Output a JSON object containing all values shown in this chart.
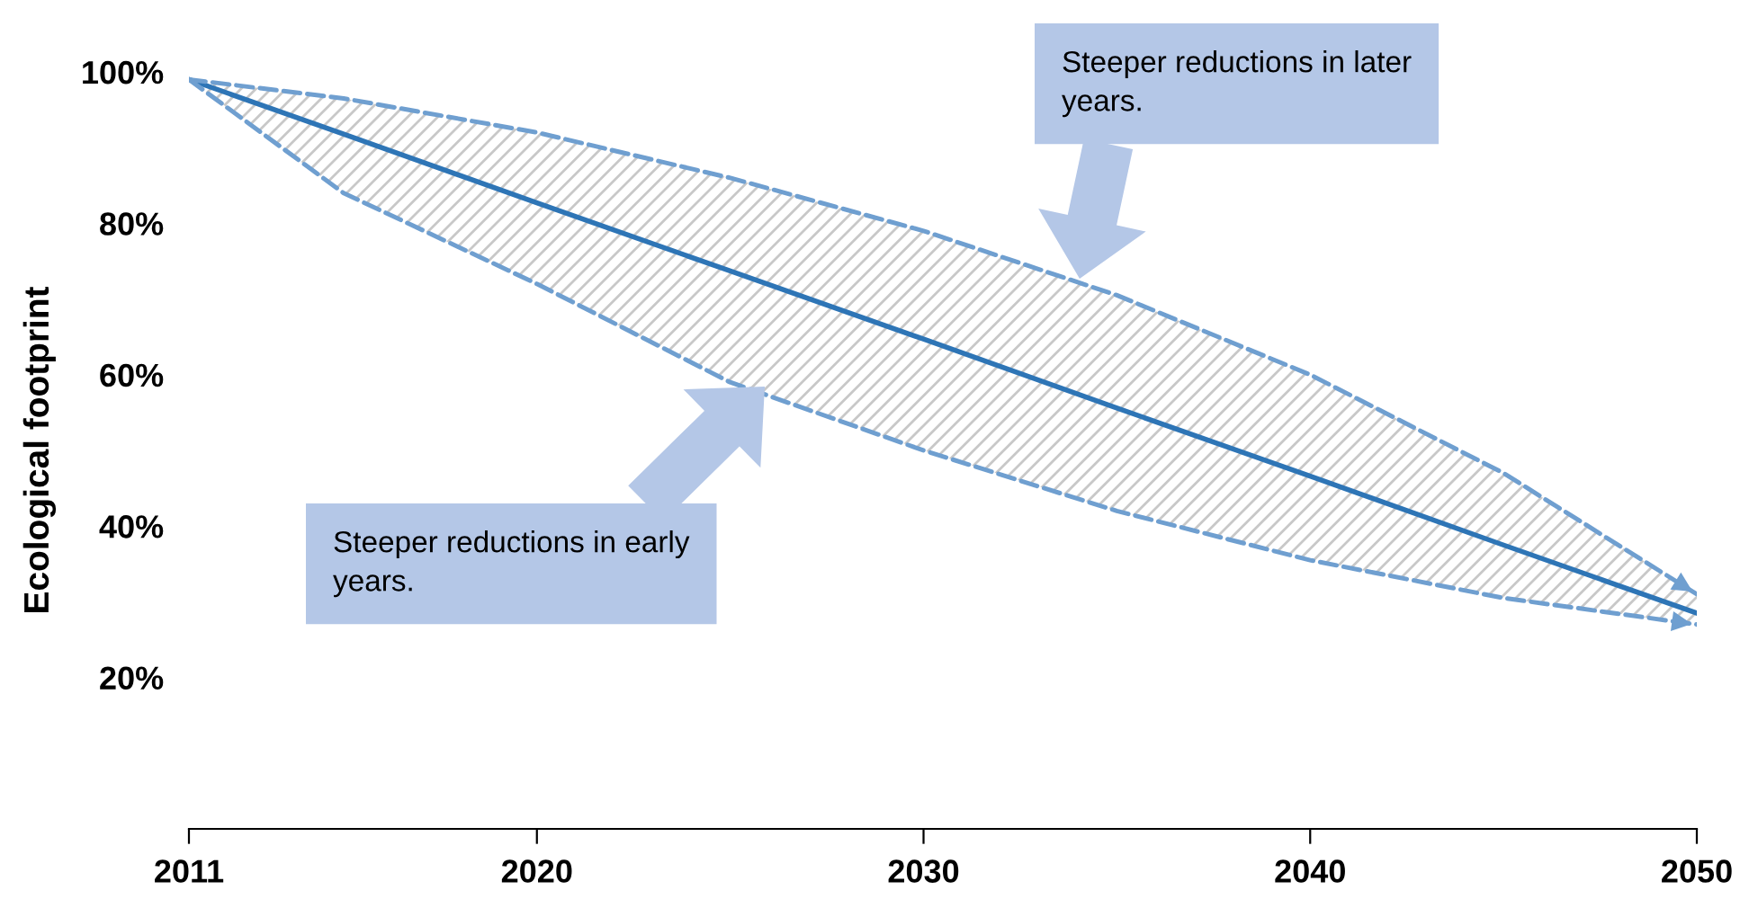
{
  "chart_data": {
    "type": "line",
    "ylabel": "Ecological footprint",
    "x": [
      2011,
      2015,
      2020,
      2025,
      2030,
      2035,
      2040,
      2045,
      2050
    ],
    "series": [
      {
        "color": "#2e75b6",
        "line_style": "solid",
        "values": [
          99,
          91.8,
          82.7,
          73.7,
          64.7,
          55.6,
          46.6,
          37.5,
          28.5
        ],
        "upper": [
          99,
          96.5,
          92,
          86,
          79,
          70.5,
          60,
          47,
          31
        ],
        "lower": [
          99,
          84,
          72,
          59,
          50,
          42,
          35.5,
          30.5,
          27
        ]
      },
      {
        "color": "#6f9fd0",
        "line_style": "dashed",
        "values": [
          99,
          96.5,
          92,
          86,
          79,
          70.5,
          60,
          47,
          31
        ]
      },
      {
        "color": "#6f9fd0",
        "line_style": "dashed",
        "values": [
          99,
          84,
          72,
          59,
          50,
          42,
          35.5,
          30.5,
          27
        ]
      }
    ],
    "xlim": [
      2011,
      2050
    ],
    "xticks": [
      2011,
      2020,
      2030,
      2040,
      2050
    ],
    "ylim": [
      0,
      100
    ],
    "yticks": [
      {
        "value": 20,
        "label": "20%"
      },
      {
        "value": 40,
        "label": "40%"
      },
      {
        "value": 60,
        "label": "60%"
      },
      {
        "value": 80,
        "label": "80%"
      },
      {
        "value": 100,
        "label": "100%"
      }
    ],
    "grid": false,
    "legend": false,
    "marker": "none",
    "annotations": [
      "Steeper reductions in later\nyears.",
      "Steeper reductions in early\nyears."
    ]
  }
}
